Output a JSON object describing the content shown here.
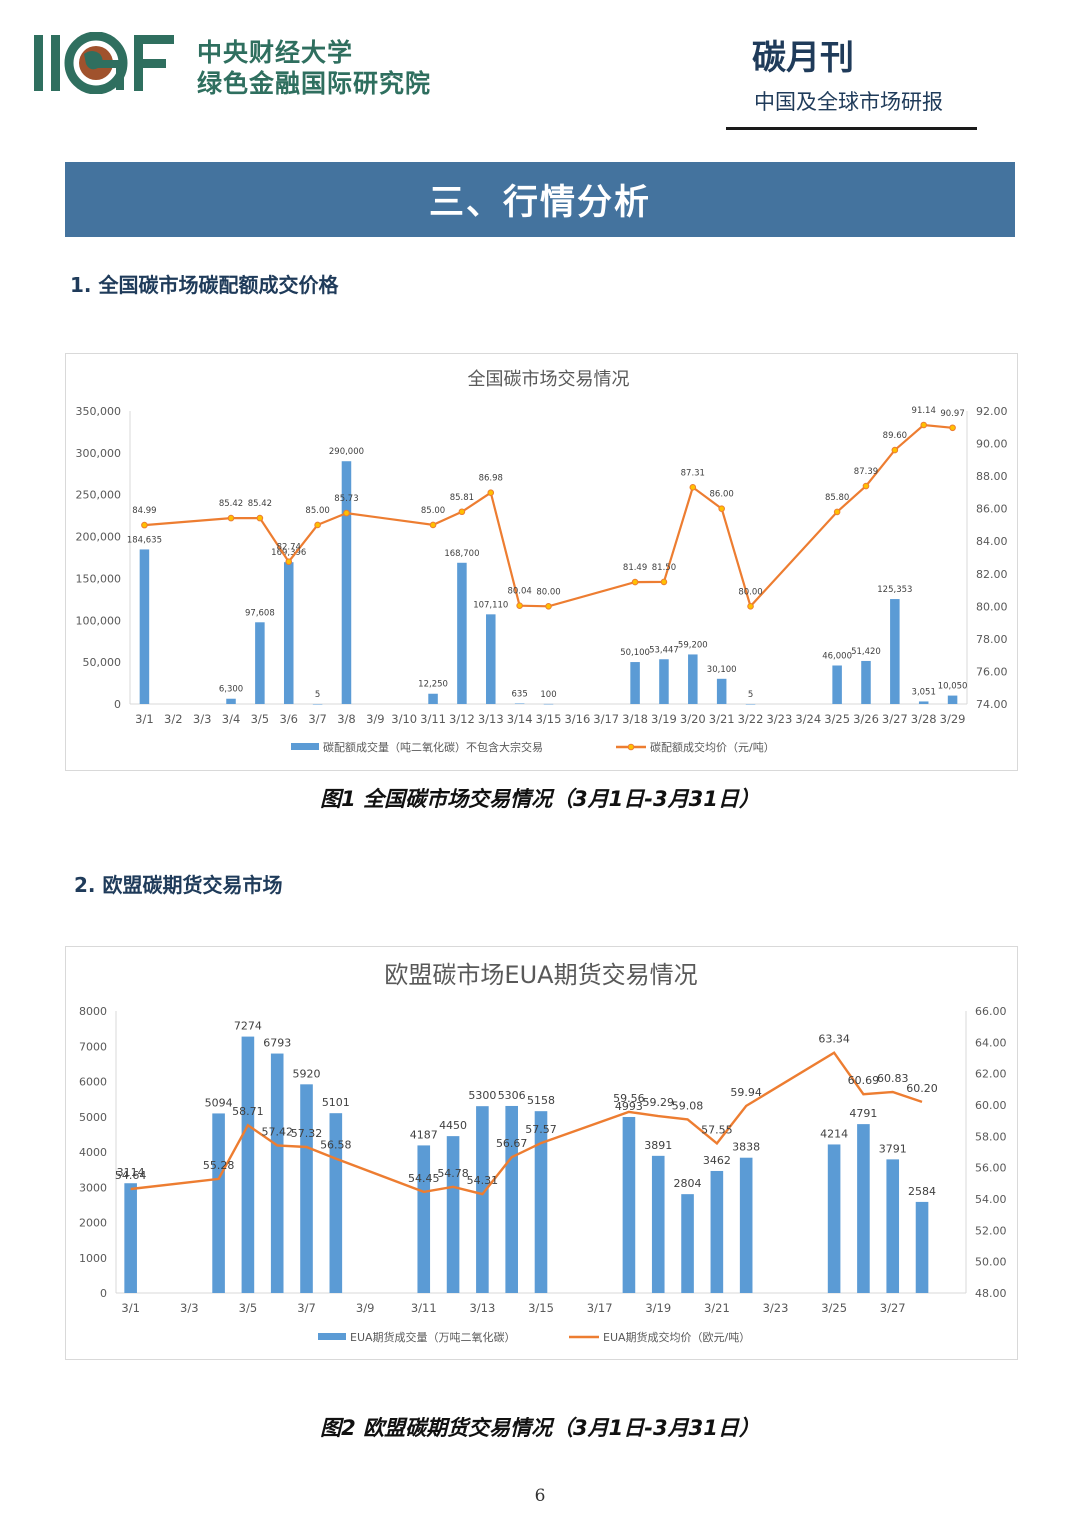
{
  "header": {
    "logo_text": "IIGF",
    "institute_line1": "中央财经大学",
    "institute_line2": "绿色金融国际研究院",
    "magazine_title": "碳月刊",
    "magazine_subtitle": "中国及全球市场研报"
  },
  "banner": {
    "title": "三、行情分析"
  },
  "section1": {
    "heading": "1. 全国碳市场碳配额成交价格"
  },
  "section2": {
    "heading": "2. 欧盟碳期货交易市场"
  },
  "figure1_caption": "图1 全国碳市场交易情况（3月1日-3月31日）",
  "figure2_caption": "图2 欧盟碳期货交易情况（3月1日-3月31日）",
  "page_number": "6",
  "colors": {
    "bar": "#5b9bd5",
    "line": "#ed7d31",
    "marker": "#ffc000",
    "banner": "#44739e"
  },
  "chart_data": [
    {
      "type": "bar+line",
      "title": "全国碳市场交易情况",
      "categories": [
        "3/1",
        "3/2",
        "3/3",
        "3/4",
        "3/5",
        "3/6",
        "3/7",
        "3/8",
        "3/9",
        "3/10",
        "3/11",
        "3/12",
        "3/13",
        "3/14",
        "3/15",
        "3/16",
        "3/17",
        "3/18",
        "3/19",
        "3/20",
        "3/21",
        "3/22",
        "3/23",
        "3/24",
        "3/25",
        "3/26",
        "3/27",
        "3/28",
        "3/29"
      ],
      "y_left": {
        "range": [
          0,
          350000
        ],
        "ticks": [
          "0",
          "50,000",
          "100,000",
          "150,000",
          "200,000",
          "250,000",
          "300,000",
          "350,000"
        ]
      },
      "y_right": {
        "range": [
          74,
          92
        ],
        "ticks": [
          "74.00",
          "76.00",
          "78.00",
          "80.00",
          "82.00",
          "84.00",
          "86.00",
          "88.00",
          "90.00",
          "92.00"
        ]
      },
      "series": [
        {
          "name": "碳配额成交量（吨二氧化碳）不包含大宗交易",
          "kind": "bar",
          "values": [
            184635,
            null,
            null,
            6300,
            97608,
            169396,
            5,
            290000,
            null,
            null,
            12250,
            168700,
            107110,
            635,
            100,
            null,
            null,
            50100,
            53447,
            59200,
            30100,
            5,
            null,
            null,
            46000,
            51420,
            125353,
            3051,
            10050
          ],
          "labels": [
            "184,635",
            null,
            null,
            "6,300",
            "97,608",
            "169,396",
            "5",
            "290,000",
            null,
            null,
            "12,250",
            "168,700",
            "107,110",
            "635",
            "100",
            null,
            null,
            "50,100",
            "53,447",
            "59,200",
            "30,100",
            "5",
            null,
            null,
            "46,000",
            "51,420",
            "125,353",
            "3,051",
            "10,050"
          ]
        },
        {
          "name": "碳配额成交均价（元/吨）",
          "kind": "line",
          "values": [
            84.99,
            null,
            null,
            85.42,
            85.42,
            82.74,
            85.0,
            85.73,
            null,
            null,
            85.0,
            85.81,
            86.98,
            80.04,
            80.0,
            null,
            null,
            81.49,
            81.5,
            87.31,
            86.0,
            80.0,
            null,
            null,
            85.8,
            87.39,
            89.6,
            91.14,
            90.97
          ],
          "labels": [
            "84.99",
            null,
            null,
            "85.42",
            "85.42",
            "82.74",
            "85.00",
            "85.73",
            null,
            null,
            "85.00",
            "85.81",
            "86.98",
            "80.04",
            "80.00",
            null,
            null,
            "81.49",
            "81.50",
            "87.31",
            "86.00",
            "80.00",
            null,
            null,
            "85.80",
            "87.39",
            "89.60",
            "91.14",
            "90.97"
          ]
        }
      ]
    },
    {
      "type": "bar+line",
      "title": "欧盟碳市场EUA期货交易情况",
      "categories": [
        "3/1",
        "3/2",
        "3/3",
        "3/4",
        "3/5",
        "3/6",
        "3/7",
        "3/8",
        "3/9",
        "3/10",
        "3/11",
        "3/12",
        "3/13",
        "3/14",
        "3/15",
        "3/16",
        "3/17",
        "3/18",
        "3/19",
        "3/20",
        "3/21",
        "3/22",
        "3/23",
        "3/24",
        "3/25",
        "3/26",
        "3/27",
        "3/28",
        "3/29"
      ],
      "x_tick_labels": [
        "3/1",
        null,
        "3/3",
        null,
        "3/5",
        null,
        "3/7",
        null,
        "3/9",
        null,
        "3/11",
        null,
        "3/13",
        null,
        "3/15",
        null,
        "3/17",
        null,
        "3/19",
        null,
        "3/21",
        null,
        "3/23",
        null,
        "3/25",
        null,
        "3/27",
        null,
        null
      ],
      "y_left": {
        "range": [
          0,
          8000
        ],
        "ticks": [
          "0",
          "1000",
          "2000",
          "3000",
          "4000",
          "5000",
          "6000",
          "7000",
          "8000"
        ]
      },
      "y_right": {
        "range": [
          48,
          66
        ],
        "ticks": [
          "48.00",
          "50.00",
          "52.00",
          "54.00",
          "56.00",
          "58.00",
          "60.00",
          "62.00",
          "64.00",
          "66.00"
        ]
      },
      "series": [
        {
          "name": "EUA期货成交量（万吨二氧化碳）",
          "kind": "bar",
          "values": [
            3114,
            null,
            null,
            5094,
            7274,
            6793,
            5920,
            5101,
            null,
            null,
            4187,
            4450,
            5300,
            5306,
            5158,
            null,
            null,
            4993,
            3891,
            2804,
            3462,
            3838,
            null,
            null,
            4214,
            4791,
            3791,
            2584,
            null
          ]
        },
        {
          "name": "EUA期货成交均价（欧元/吨）",
          "kind": "line",
          "values": [
            54.64,
            null,
            null,
            55.28,
            58.71,
            57.42,
            57.32,
            56.58,
            null,
            null,
            54.45,
            54.78,
            54.31,
            56.67,
            57.57,
            null,
            null,
            59.56,
            59.29,
            59.08,
            57.55,
            59.94,
            null,
            null,
            63.34,
            60.69,
            60.83,
            60.2,
            null
          ]
        }
      ]
    }
  ]
}
